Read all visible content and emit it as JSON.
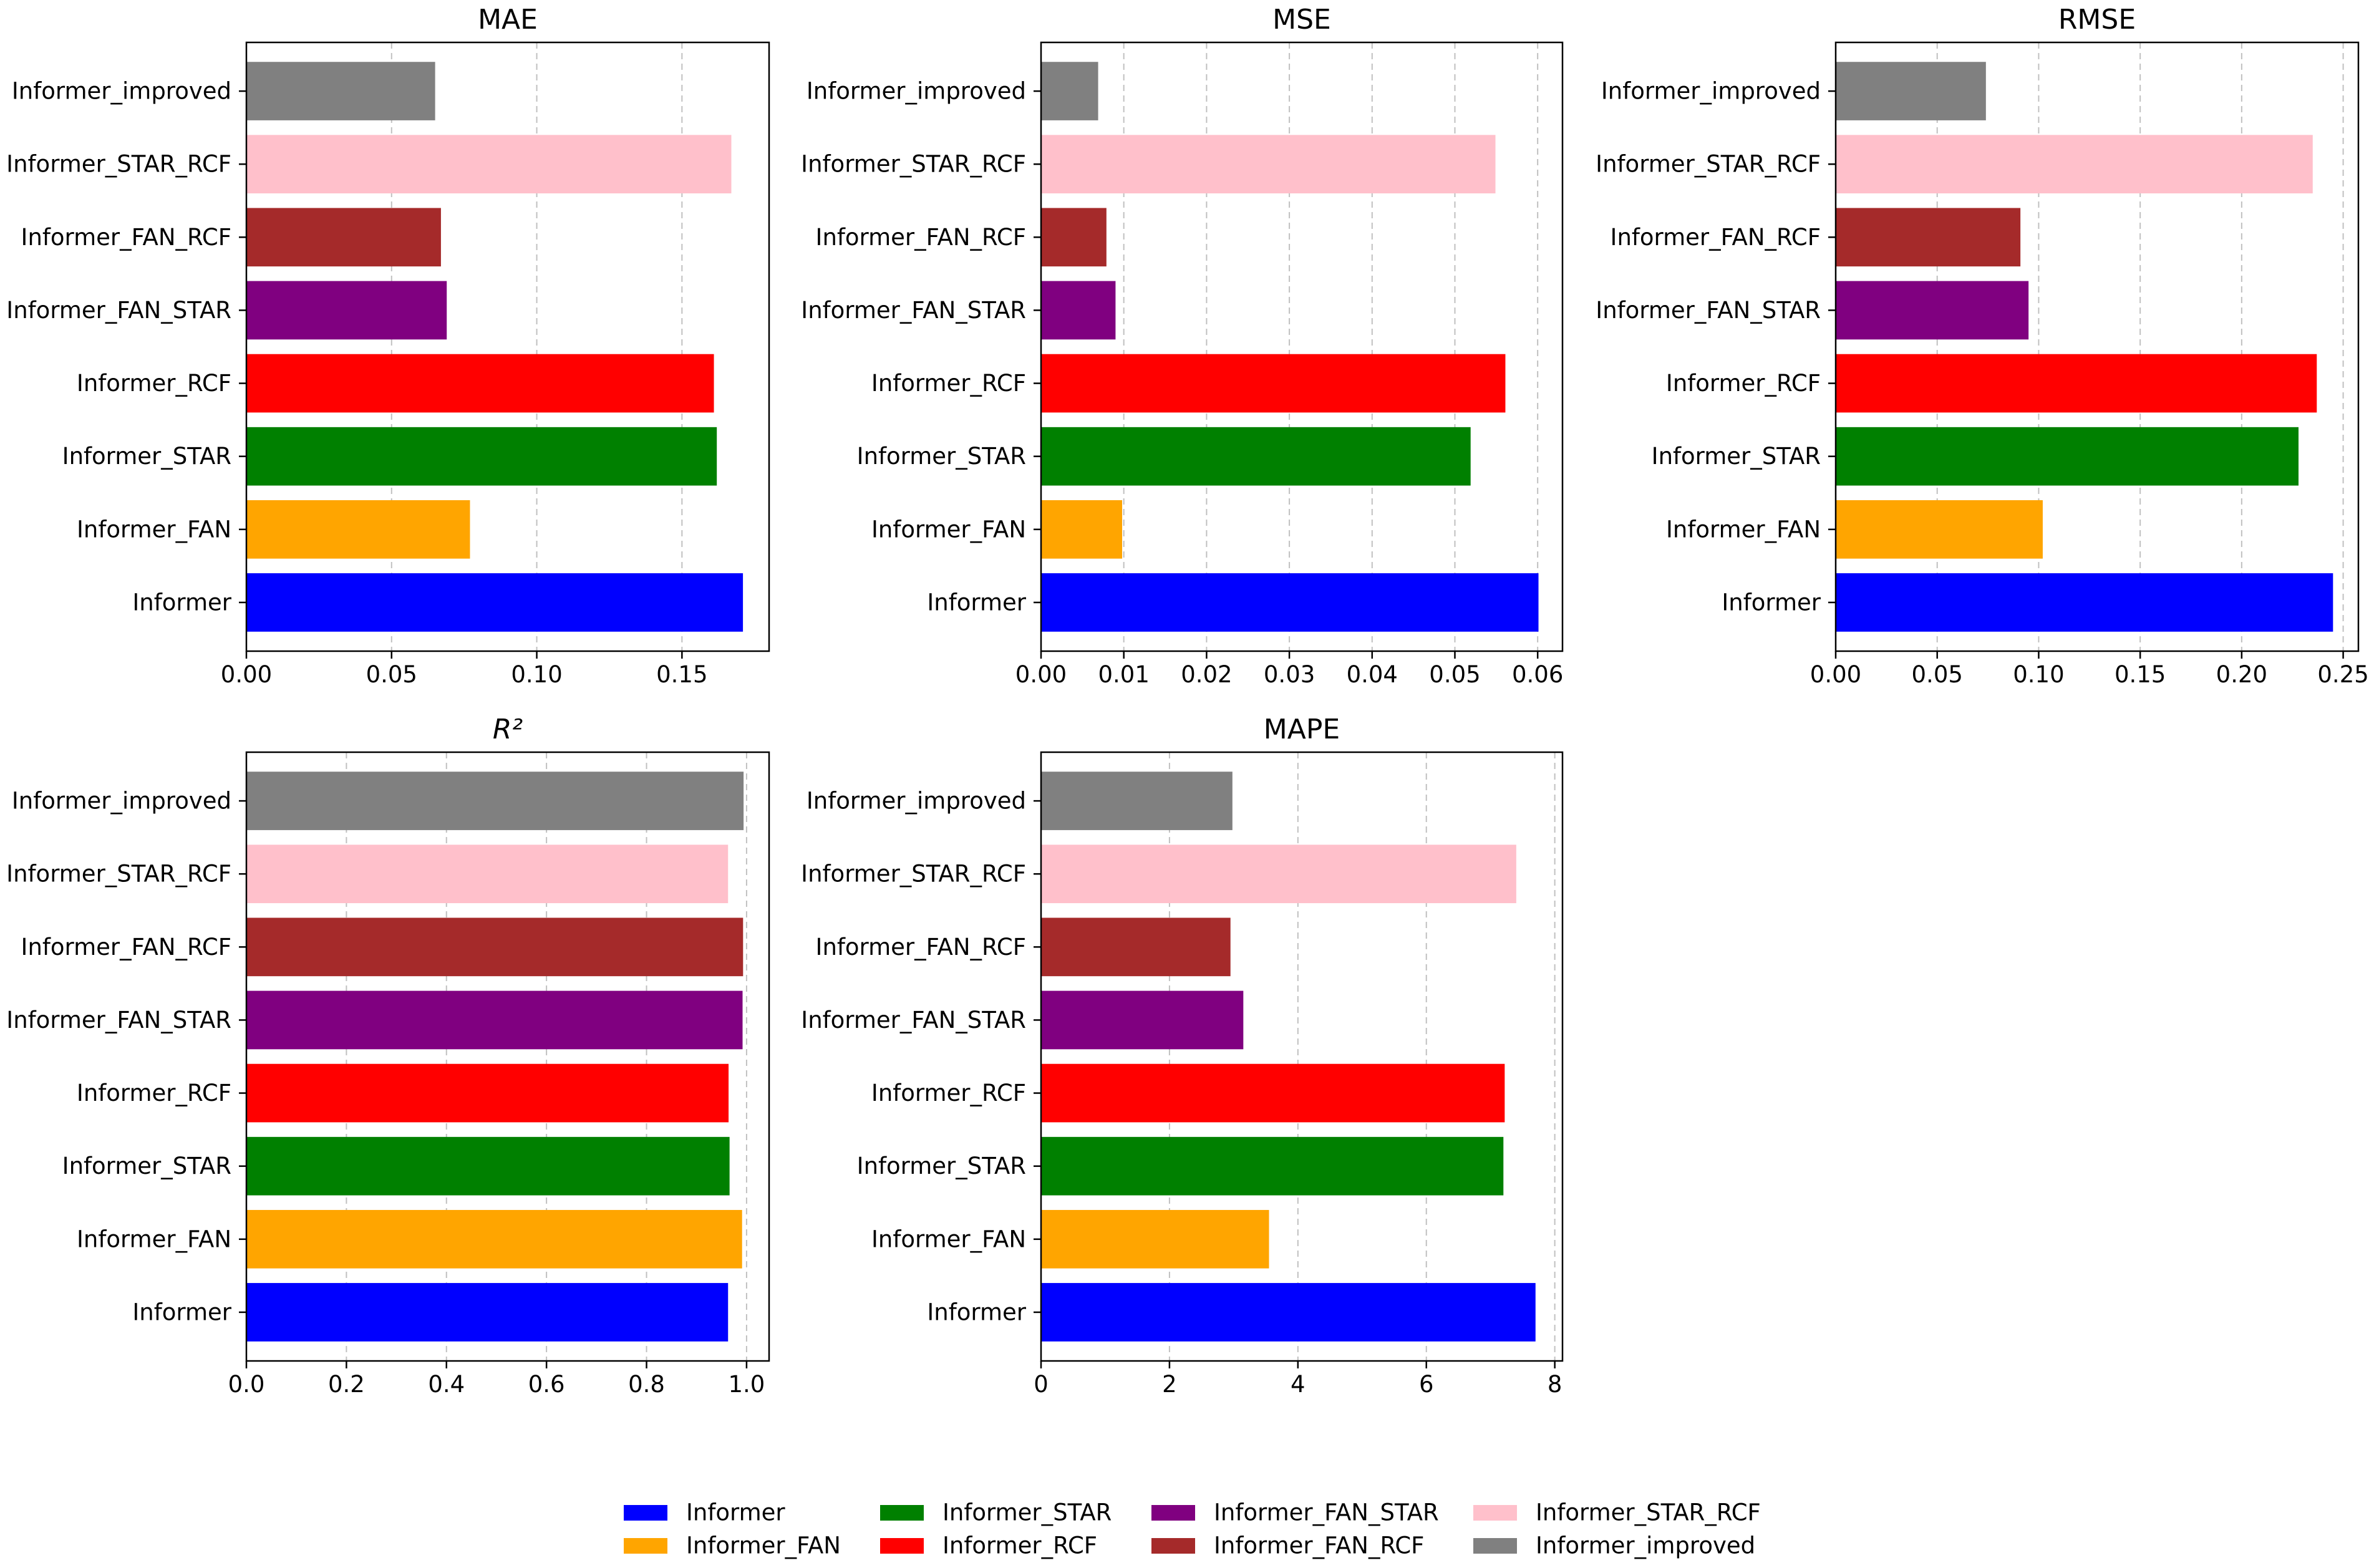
{
  "chart_data": [
    {
      "type": "bar",
      "orientation": "horizontal",
      "title": "MAE",
      "categories": [
        "Informer",
        "Informer_FAN",
        "Informer_STAR",
        "Informer_RCF",
        "Informer_FAN_STAR",
        "Informer_FAN_RCF",
        "Informer_STAR_RCF",
        "Informer_improved"
      ],
      "values": [
        0.171,
        0.077,
        0.162,
        0.161,
        0.069,
        0.067,
        0.167,
        0.065
      ],
      "xlim": [
        0,
        0.18
      ],
      "xticks": [
        0.0,
        0.05,
        0.1,
        0.15
      ],
      "xtick_labels": [
        "0.00",
        "0.05",
        "0.10",
        "0.15"
      ],
      "grid": "x, dashed"
    },
    {
      "type": "bar",
      "orientation": "horizontal",
      "title": "MSE",
      "categories": [
        "Informer",
        "Informer_FAN",
        "Informer_STAR",
        "Informer_RCF",
        "Informer_FAN_STAR",
        "Informer_FAN_RCF",
        "Informer_STAR_RCF",
        "Informer_improved"
      ],
      "values": [
        0.0601,
        0.0098,
        0.0519,
        0.0561,
        0.009,
        0.0079,
        0.0549,
        0.0069
      ],
      "xlim": [
        0,
        0.063
      ],
      "xticks": [
        0.0,
        0.01,
        0.02,
        0.03,
        0.04,
        0.05,
        0.06
      ],
      "xtick_labels": [
        "0.00",
        "0.01",
        "0.02",
        "0.03",
        "0.04",
        "0.05",
        "0.06"
      ],
      "grid": "x, dashed"
    },
    {
      "type": "bar",
      "orientation": "horizontal",
      "title": "RMSE",
      "categories": [
        "Informer",
        "Informer_FAN",
        "Informer_STAR",
        "Informer_RCF",
        "Informer_FAN_STAR",
        "Informer_FAN_RCF",
        "Informer_STAR_RCF",
        "Informer_improved"
      ],
      "values": [
        0.245,
        0.102,
        0.228,
        0.237,
        0.095,
        0.091,
        0.235,
        0.074
      ],
      "xlim": [
        0,
        0.2575
      ],
      "xticks": [
        0.0,
        0.05,
        0.1,
        0.15,
        0.2,
        0.25
      ],
      "xtick_labels": [
        "0.00",
        "0.05",
        "0.10",
        "0.15",
        "0.20",
        "0.25"
      ],
      "grid": "x, dashed"
    },
    {
      "type": "bar",
      "orientation": "horizontal",
      "title": "R²",
      "categories": [
        "Informer",
        "Informer_FAN",
        "Informer_STAR",
        "Informer_RCF",
        "Informer_FAN_STAR",
        "Informer_FAN_RCF",
        "Informer_STAR_RCF",
        "Informer_improved"
      ],
      "values": [
        0.963,
        0.991,
        0.966,
        0.964,
        0.992,
        0.993,
        0.963,
        0.994
      ],
      "xlim": [
        0,
        1.045
      ],
      "xticks": [
        0.0,
        0.2,
        0.4,
        0.6,
        0.8,
        1.0
      ],
      "xtick_labels": [
        "0.0",
        "0.2",
        "0.4",
        "0.6",
        "0.8",
        "1.0"
      ],
      "grid": "x, dashed"
    },
    {
      "type": "bar",
      "orientation": "horizontal",
      "title": "MAPE",
      "categories": [
        "Informer",
        "Informer_FAN",
        "Informer_STAR",
        "Informer_RCF",
        "Informer_FAN_STAR",
        "Informer_FAN_RCF",
        "Informer_STAR_RCF",
        "Informer_improved"
      ],
      "values": [
        7.7,
        3.55,
        7.2,
        7.22,
        3.15,
        2.95,
        7.4,
        2.98
      ],
      "xlim": [
        0,
        8.12
      ],
      "xticks": [
        0,
        2,
        4,
        6,
        8
      ],
      "xtick_labels": [
        "0",
        "2",
        "4",
        "6",
        "8"
      ],
      "grid": "x, dashed"
    }
  ],
  "legend": {
    "placement": "bottom-center",
    "items": [
      {
        "label": "Informer",
        "color": "#0000ff"
      },
      {
        "label": "Informer_FAN",
        "color": "#ffa500"
      },
      {
        "label": "Informer_STAR",
        "color": "#008000"
      },
      {
        "label": "Informer_RCF",
        "color": "#ff0000"
      },
      {
        "label": "Informer_FAN_STAR",
        "color": "#800080"
      },
      {
        "label": "Informer_FAN_RCF",
        "color": "#a52a2a"
      },
      {
        "label": "Informer_STAR_RCF",
        "color": "#ffc0cb"
      },
      {
        "label": "Informer_improved",
        "color": "#808080"
      }
    ]
  },
  "colors": {
    "grid": "#c0c0c0",
    "axis": "#000000"
  }
}
